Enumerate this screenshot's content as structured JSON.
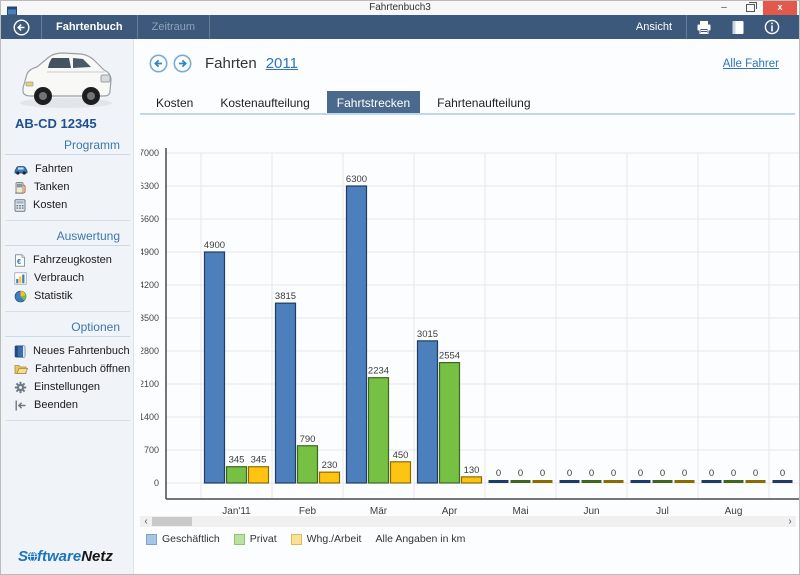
{
  "window": {
    "title": "Fahrtenbuch3",
    "minimize_glyph": "–",
    "close_glyph": "x"
  },
  "menubar": {
    "items": [
      {
        "label": "Fahrtenbuch",
        "enabled": true
      },
      {
        "label": "Zeitraum",
        "enabled": false
      }
    ],
    "view_label": "Ansicht",
    "icons": [
      "back-arrow-icon",
      "printer-icon",
      "logbook-icon",
      "info-icon"
    ]
  },
  "sidebar": {
    "license_plate": "AB-CD 12345",
    "sections": [
      {
        "title": "Programm",
        "items": [
          {
            "label": "Fahrten",
            "icon": "car-icon"
          },
          {
            "label": "Tanken",
            "icon": "fuel-pump-icon"
          },
          {
            "label": "Kosten",
            "icon": "calculator-icon"
          }
        ]
      },
      {
        "title": "Auswertung",
        "items": [
          {
            "label": "Fahrzeugkosten",
            "icon": "euro-document-icon"
          },
          {
            "label": "Verbrauch",
            "icon": "column-chart-icon"
          },
          {
            "label": "Statistik",
            "icon": "pie-chart-icon"
          }
        ]
      },
      {
        "title": "Optionen",
        "items": [
          {
            "label": "Neues Fahrtenbuch",
            "icon": "blue-book-icon"
          },
          {
            "label": "Fahrtenbuch öffnen",
            "icon": "open-folder-icon"
          },
          {
            "label": "Einstellungen",
            "icon": "gear-icon"
          },
          {
            "label": "Beenden",
            "icon": "exit-icon"
          }
        ]
      }
    ],
    "logo": {
      "part_blue_1": "S",
      "globe": "o",
      "part_blue_2": "ftware",
      "part_black": "Netz"
    }
  },
  "header": {
    "title": "Fahrten",
    "year": "2011",
    "all_drivers": "Alle Fahrer"
  },
  "tabs": [
    {
      "label": "Kosten",
      "selected": false
    },
    {
      "label": "Kostenaufteilung",
      "selected": false
    },
    {
      "label": "Fahrtstrecken",
      "selected": true
    },
    {
      "label": "Fahrtenaufteilung",
      "selected": false
    }
  ],
  "chart_data": {
    "type": "bar",
    "categories": [
      "Jan'11",
      "Feb",
      "Mär",
      "Apr",
      "Mai",
      "Jun",
      "Jul",
      "Aug"
    ],
    "series": [
      {
        "name": "Geschäftlich",
        "color": "#4C7FBC",
        "border": "#1E3C64",
        "values": [
          4900,
          3815,
          6300,
          3015,
          0,
          0,
          0,
          0
        ]
      },
      {
        "name": "Privat",
        "color": "#76C043",
        "border": "#3E661F",
        "values": [
          345,
          790,
          2234,
          2554,
          0,
          0,
          0,
          0
        ]
      },
      {
        "name": "Whg./Arbeit",
        "color": "#FDC412",
        "border": "#8A6C00",
        "values": [
          345,
          230,
          450,
          130,
          0,
          0,
          0,
          0
        ]
      }
    ],
    "clipped_next_value": 0,
    "ylim": [
      0,
      7000
    ],
    "yticks": [
      0,
      700,
      1400,
      2100,
      2800,
      3500,
      4200,
      4900,
      5600,
      6300,
      7000
    ],
    "value_labels": true,
    "grid": true,
    "legend_position": "bottom",
    "legend_swatches": [
      {
        "fill": "#A6C6E6",
        "border": "#7FA4CC"
      },
      {
        "fill": "#BCE19E",
        "border": "#8FC46C"
      },
      {
        "fill": "#FBE193",
        "border": "#D9BC62"
      }
    ],
    "note": "Alle Angaben in km"
  },
  "scrollbar": {
    "left_glyph": "‹",
    "right_glyph": "›"
  },
  "colors": {
    "menubar_bg": "#3C587A",
    "tab_selected_bg": "#4B698C",
    "accent_link": "#2E75B6",
    "sidebar_header": "#3A76AE",
    "close_button": "#E2584B",
    "plate_text": "#1D4F91"
  }
}
